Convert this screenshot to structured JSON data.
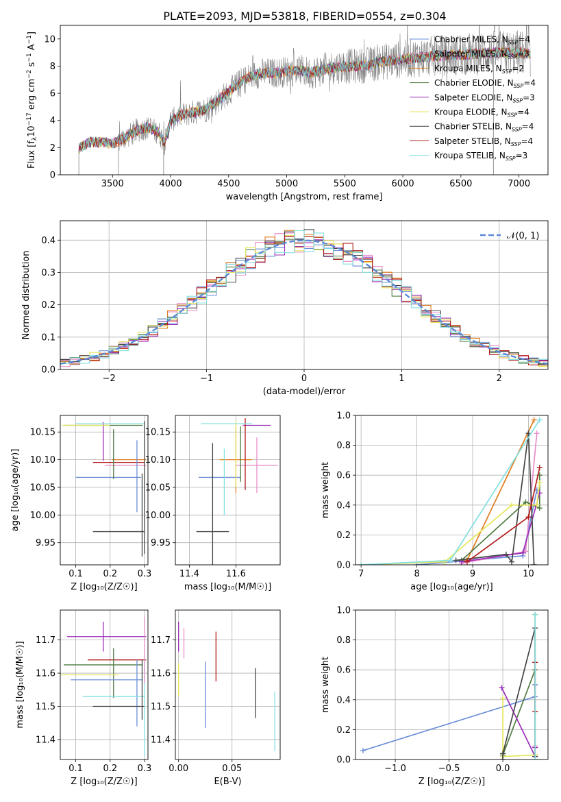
{
  "figure_title": "PLATE=2093, MJD=53818, FIBERID=0554, z=0.304",
  "colors": {
    "chabrier_miles": "#6a8ed8",
    "salpeter_miles": "#e88cc8",
    "kroupa_miles": "#e07b1a",
    "chabrier_elodie": "#4f7a3f",
    "salpeter_elodie": "#9a2cb8",
    "kroupa_elodie": "#e5e55a",
    "chabrier_stelib": "#444444",
    "salpeter_stelib": "#b01b1b",
    "kroupa_stelib": "#82dfe0",
    "data_gray": "#808080",
    "normal_curve": "#5b8ad6"
  },
  "legend_spectrum": [
    {
      "label": "Chabrier MILES, N",
      "sub": "SSP",
      "eq": "=4",
      "color": "#6a8ed8"
    },
    {
      "label": "Salpeter MILES, N",
      "sub": "SSP",
      "eq": "=3",
      "color": "#e88cc8"
    },
    {
      "label": "Kroupa MILES, N",
      "sub": "SSP",
      "eq": "=2",
      "color": "#e07b1a"
    },
    {
      "label": "Chabrier ELODIE, N",
      "sub": "SSP",
      "eq": "=4",
      "color": "#4f7a3f"
    },
    {
      "label": "Salpeter ELODIE, N",
      "sub": "SSP",
      "eq": "=3",
      "color": "#9a2cb8"
    },
    {
      "label": "Kroupa ELODIE, N",
      "sub": "SSP",
      "eq": "=4",
      "color": "#e5e55a"
    },
    {
      "label": "Chabrier STELIB, N",
      "sub": "SSP",
      "eq": "=4",
      "color": "#444444"
    },
    {
      "label": "Salpeter STELIB, N",
      "sub": "SSP",
      "eq": "=4",
      "color": "#b01b1b"
    },
    {
      "label": "Kroupa STELIB, N",
      "sub": "SSP",
      "eq": "=3",
      "color": "#82dfe0"
    }
  ],
  "legend_hist": {
    "label": "𝒩(0, 1)"
  },
  "chart_data": [
    {
      "id": "spectrum",
      "type": "line",
      "title": "PLATE=2093, MJD=53818, FIBERID=0554, z=0.304",
      "xlabel": "wavelength [Angstrom, rest frame]",
      "ylabel": "Flux [f",
      "ylabel_parts": {
        "a": "Flux [f",
        "lam": "λ",
        "b": "10",
        "e1": "−17",
        "c": " erg cm",
        "e2": "−2",
        "d": " s",
        "e3": "−1",
        "f": " A",
        "e4": "−1",
        "g": "]"
      },
      "xlim": [
        3050,
        7250
      ],
      "ylim": [
        0,
        11
      ],
      "xticks": [
        3500,
        4000,
        4500,
        5000,
        5500,
        6000,
        6500,
        7000
      ],
      "yticks": [
        0,
        2,
        4,
        6,
        8,
        10
      ],
      "continuum": {
        "x": [
          3210,
          3300,
          3400,
          3500,
          3600,
          3700,
          3800,
          3900,
          3950,
          4000,
          4100,
          4200,
          4300,
          4400,
          4500,
          4600,
          4700,
          4800,
          4900,
          5000,
          5100,
          5200,
          5300,
          5400,
          5500,
          5600,
          5700,
          5800,
          5900,
          6000,
          6200,
          6400,
          6600,
          6800,
          7000,
          7100
        ],
        "y": [
          1.9,
          2.4,
          2.4,
          2.3,
          2.7,
          3.2,
          3.5,
          3.1,
          2.3,
          4.0,
          4.4,
          4.6,
          4.8,
          5.4,
          6.1,
          6.8,
          7.3,
          7.5,
          7.5,
          7.6,
          7.7,
          7.5,
          7.7,
          7.9,
          8.0,
          8.0,
          8.1,
          8.3,
          8.4,
          8.5,
          8.7,
          8.8,
          8.9,
          9.0,
          9.0,
          8.9
        ]
      }
    },
    {
      "id": "residual_hist",
      "type": "histogram",
      "xlabel": "(data-model)/error",
      "ylabel": "Normed distribution",
      "xlim": [
        -2.5,
        2.5
      ],
      "ylim": [
        0,
        0.46
      ],
      "xticks": [
        -2,
        -1,
        0,
        1,
        2
      ],
      "yticks": [
        0.0,
        0.1,
        0.2,
        0.3,
        0.4
      ],
      "bin_width": 0.1,
      "curve": {
        "name": "𝒩(0, 1)",
        "mean": 0,
        "sigma": 1
      }
    },
    {
      "id": "age_vs_Z",
      "type": "errorbar",
      "xlabel": "Z [log₁₀(Z/Z☉)]",
      "ylabel": "age  [log₁₀(age/yr)]",
      "xlim": [
        0.055,
        0.31
      ],
      "ylim": [
        9.91,
        10.18
      ],
      "xticks": [
        0.1,
        0.2,
        0.3
      ],
      "yticks": [
        9.95,
        10.0,
        10.05,
        10.1,
        10.15
      ],
      "points": [
        {
          "c": "#6a8ed8",
          "x": 0.195,
          "xe": 0.095,
          "y": 10.068,
          "ye": 0.0
        },
        {
          "c": "#e88cc8",
          "x": 0.245,
          "xe": 0.06,
          "y": 10.09,
          "ye": 0.0
        },
        {
          "c": "#e07b1a",
          "x": 0.255,
          "xe": 0.05,
          "y": 10.1,
          "ye": 0.0
        },
        {
          "c": "#4f7a3f",
          "x": 0.18,
          "xe": 0.115,
          "y": 10.162,
          "ye": 0.0
        },
        {
          "c": "#9a2cb8",
          "x": 0.18,
          "xe": 0.0,
          "y": 10.133,
          "ye": 0.035
        },
        {
          "c": "#e5e55a",
          "x": 0.13,
          "xe": 0.07,
          "y": 10.162,
          "ye": 0.0
        },
        {
          "c": "#444444",
          "x": 0.225,
          "xe": 0.075,
          "y": 9.97,
          "ye": 0.0
        },
        {
          "c": "#b01b1b",
          "x": 0.225,
          "xe": 0.075,
          "y": 10.095,
          "ye": 0.0
        },
        {
          "c": "#82dfe0",
          "x": 0.2,
          "xe": 0.1,
          "y": 10.165,
          "ye": 0.0
        },
        {
          "c": "#6a8ed8",
          "x": 0.278,
          "xe": 0.0,
          "y": 10.07,
          "ye": 0.065
        },
        {
          "c": "#444444",
          "x": 0.293,
          "xe": 0.0,
          "y": 10.0,
          "ye": 0.075
        },
        {
          "c": "#444444",
          "x": 0.3,
          "xe": 0.0,
          "y": 10.05,
          "ye": 0.12
        },
        {
          "c": "#4f7a3f",
          "x": 0.21,
          "xe": 0.0,
          "y": 10.11,
          "ye": 0.045
        }
      ]
    },
    {
      "id": "age_vs_mass",
      "type": "errorbar",
      "xlabel": "mass [log₁₀(M/M☉)]",
      "ylabel": "",
      "xlim": [
        11.34,
        11.79
      ],
      "ylim": [
        9.91,
        10.18
      ],
      "xticks": [
        11.4,
        11.6
      ],
      "yticks": [
        9.95,
        10.0,
        10.05,
        10.1,
        10.15
      ],
      "points": [
        {
          "c": "#6a8ed8",
          "x": 11.53,
          "xe": 0.09,
          "y": 10.068,
          "ye": 0.0
        },
        {
          "c": "#e88cc8",
          "x": 11.69,
          "xe": 0.09,
          "y": 10.09,
          "ye": 0.05
        },
        {
          "c": "#e07b1a",
          "x": 11.6,
          "xe": 0.07,
          "y": 10.1,
          "ye": 0.06
        },
        {
          "c": "#4f7a3f",
          "x": 11.62,
          "xe": 0.0,
          "y": 10.11,
          "ye": 0.05
        },
        {
          "c": "#9a2cb8",
          "x": 11.69,
          "xe": 0.06,
          "y": 10.162,
          "ye": 0.0
        },
        {
          "c": "#e5e55a",
          "x": 11.6,
          "xe": 0.0,
          "y": 10.11,
          "ye": 0.06
        },
        {
          "c": "#444444",
          "x": 11.5,
          "xe": 0.0,
          "y": 10.02,
          "ye": 0.11
        },
        {
          "c": "#444444",
          "x": 11.5,
          "xe": 0.07,
          "y": 9.97,
          "ye": 0.0
        },
        {
          "c": "#b01b1b",
          "x": 11.64,
          "xe": 0.0,
          "y": 10.11,
          "ye": 0.065
        },
        {
          "c": "#82dfe0",
          "x": 11.55,
          "xe": 0.0,
          "y": 10.06,
          "ye": 0.06
        },
        {
          "c": "#82dfe0",
          "x": 11.56,
          "xe": 0.11,
          "y": 10.165,
          "ye": 0.0
        }
      ]
    },
    {
      "id": "weight_vs_age",
      "type": "line",
      "xlabel": "age  [log₁₀(age/yr)]",
      "ylabel": "mass weight",
      "xlim": [
        6.9,
        10.35
      ],
      "ylim": [
        0,
        1.0
      ],
      "xticks": [
        7,
        8,
        9,
        10
      ],
      "yticks": [
        0.0,
        0.2,
        0.4,
        0.6,
        0.8,
        1.0
      ],
      "series": [
        {
          "c": "#6a8ed8",
          "x": [
            8.0,
            9.9,
            10.15
          ],
          "y": [
            0.0,
            0.06,
            0.5
          ]
        },
        {
          "c": "#e88cc8",
          "x": [
            8.8,
            9.95,
            10.15
          ],
          "y": [
            0.01,
            0.09,
            0.88
          ]
        },
        {
          "c": "#e07b1a",
          "x": [
            8.9,
            10.1
          ],
          "y": [
            0.03,
            0.97
          ]
        },
        {
          "c": "#4f7a3f",
          "x": [
            8.8,
            9.95,
            10.2,
            10.2
          ],
          "y": [
            0.03,
            0.42,
            0.38,
            0.6
          ]
        },
        {
          "c": "#9a2cb8",
          "x": [
            8.8,
            9.9,
            10.2
          ],
          "y": [
            0.02,
            0.08,
            0.48
          ]
        },
        {
          "c": "#e5e55a",
          "x": [
            7.0,
            8.5,
            9.7,
            10.15,
            10.2
          ],
          "y": [
            0.0,
            0.02,
            0.4,
            0.4,
            0.55
          ]
        },
        {
          "c": "#444444",
          "x": [
            8.7,
            9.6,
            9.7,
            10.0,
            10.1
          ],
          "y": [
            0.03,
            0.07,
            0.02,
            0.88,
            0.0
          ]
        },
        {
          "c": "#b01b1b",
          "x": [
            8.9,
            10.0,
            10.2
          ],
          "y": [
            0.02,
            0.32,
            0.65
          ]
        },
        {
          "c": "#82dfe0",
          "x": [
            7.0,
            8.6,
            10.2
          ],
          "y": [
            0.0,
            0.03,
            0.97
          ]
        }
      ]
    },
    {
      "id": "mass_vs_Z",
      "type": "errorbar",
      "xlabel": "Z [log₁₀(Z/Z☉)]",
      "ylabel": "mass [log₁₀(M/M☉)]",
      "xlim": [
        0.055,
        0.31
      ],
      "ylim": [
        11.34,
        11.79
      ],
      "xticks": [
        0.1,
        0.2,
        0.3
      ],
      "yticks": [
        11.4,
        11.5,
        11.6,
        11.7
      ],
      "points": [
        {
          "c": "#9a2cb8",
          "x": 0.19,
          "xe": 0.115,
          "y": 11.71,
          "ye": 0.0
        },
        {
          "c": "#9a2cb8",
          "x": 0.18,
          "xe": 0.0,
          "y": 11.71,
          "ye": 0.045
        },
        {
          "c": "#b01b1b",
          "x": 0.22,
          "xe": 0.085,
          "y": 11.64,
          "ye": 0.0
        },
        {
          "c": "#4f7a3f",
          "x": 0.18,
          "xe": 0.115,
          "y": 11.625,
          "ye": 0.0
        },
        {
          "c": "#4f7a3f",
          "x": 0.21,
          "xe": 0.0,
          "y": 11.6,
          "ye": 0.075
        },
        {
          "c": "#e5e55a",
          "x": 0.14,
          "xe": 0.085,
          "y": 11.595,
          "ye": 0.0
        },
        {
          "c": "#6a8ed8",
          "x": 0.19,
          "xe": 0.105,
          "y": 11.58,
          "ye": 0.0
        },
        {
          "c": "#6a8ed8",
          "x": 0.278,
          "xe": 0.0,
          "y": 11.54,
          "ye": 0.1
        },
        {
          "c": "#82dfe0",
          "x": 0.21,
          "xe": 0.09,
          "y": 11.53,
          "ye": 0.0
        },
        {
          "c": "#444444",
          "x": 0.225,
          "xe": 0.075,
          "y": 11.5,
          "ye": 0.0
        },
        {
          "c": "#444444",
          "x": 0.293,
          "xe": 0.0,
          "y": 11.55,
          "ye": 0.09
        },
        {
          "c": "#82dfe0",
          "x": 0.3,
          "xe": 0.0,
          "y": 11.5,
          "ye": 0.15
        },
        {
          "c": "#e88cc8",
          "x": 0.3,
          "xe": 0.0,
          "y": 11.67,
          "ye": 0.1
        }
      ]
    },
    {
      "id": "mass_vs_EBV",
      "type": "errorbar",
      "xlabel": "E(B-V)",
      "ylabel": "",
      "xlim": [
        -0.003,
        0.095
      ],
      "ylim": [
        11.34,
        11.79
      ],
      "xticks": [
        0.0,
        0.05
      ],
      "yticks": [
        11.4,
        11.5,
        11.6,
        11.7
      ],
      "points": [
        {
          "c": "#9a2cb8",
          "x": 0.0,
          "xe": 0.0,
          "y": 11.71,
          "ye": 0.045
        },
        {
          "c": "#e88cc8",
          "x": 0.005,
          "xe": 0.0,
          "y": 11.69,
          "ye": 0.045
        },
        {
          "c": "#e5e55a",
          "x": 0.0,
          "xe": 0.0,
          "y": 11.58,
          "ye": 0.05
        },
        {
          "c": "#6a8ed8",
          "x": 0.025,
          "xe": 0.0,
          "y": 11.535,
          "ye": 0.1
        },
        {
          "c": "#b01b1b",
          "x": 0.035,
          "xe": 0.0,
          "y": 11.65,
          "ye": 0.075
        },
        {
          "c": "#444444",
          "x": 0.072,
          "xe": 0.0,
          "y": 11.54,
          "ye": 0.075
        },
        {
          "c": "#82dfe0",
          "x": 0.09,
          "xe": 0.0,
          "y": 11.455,
          "ye": 0.09
        }
      ]
    },
    {
      "id": "weight_vs_Z",
      "type": "line",
      "xlabel": "Z [log₁₀(Z/Z☉)]",
      "ylabel": "mass weight",
      "xlim": [
        -1.37,
        0.42
      ],
      "ylim": [
        0,
        1.0
      ],
      "xticks": [
        -1.0,
        -0.5,
        0.0
      ],
      "yticks": [
        0.0,
        0.2,
        0.4,
        0.6,
        0.8,
        1.0
      ],
      "series": [
        {
          "c": "#6a8ed8",
          "x": [
            -1.3,
            0.3,
            0.3
          ],
          "y": [
            0.06,
            0.42,
            0.5
          ]
        },
        {
          "c": "#e88cc8",
          "x": [
            0.3,
            0.3
          ],
          "y": [
            0.09,
            0.88
          ]
        },
        {
          "c": "#e07b1a",
          "x": [
            0.3,
            0.3
          ],
          "y": [
            0.03,
            0.97
          ]
        },
        {
          "c": "#4f7a3f",
          "x": [
            0.0,
            0.3
          ],
          "y": [
            0.03,
            0.6
          ]
        },
        {
          "c": "#9a2cb8",
          "x": [
            -0.01,
            0.3,
            0.3
          ],
          "y": [
            0.48,
            0.02,
            0.08
          ]
        },
        {
          "c": "#e5e55a",
          "x": [
            0.0,
            0.0,
            0.3
          ],
          "y": [
            0.41,
            0.02,
            0.03
          ]
        },
        {
          "c": "#444444",
          "x": [
            0.0,
            0.0,
            0.3,
            0.3
          ],
          "y": [
            0.0,
            0.04,
            0.88,
            0.02
          ]
        },
        {
          "c": "#b01b1b",
          "x": [
            0.3,
            0.3
          ],
          "y": [
            0.32,
            0.65
          ]
        },
        {
          "c": "#82dfe0",
          "x": [
            0.3,
            0.3
          ],
          "y": [
            0.0,
            0.97
          ]
        }
      ]
    }
  ]
}
